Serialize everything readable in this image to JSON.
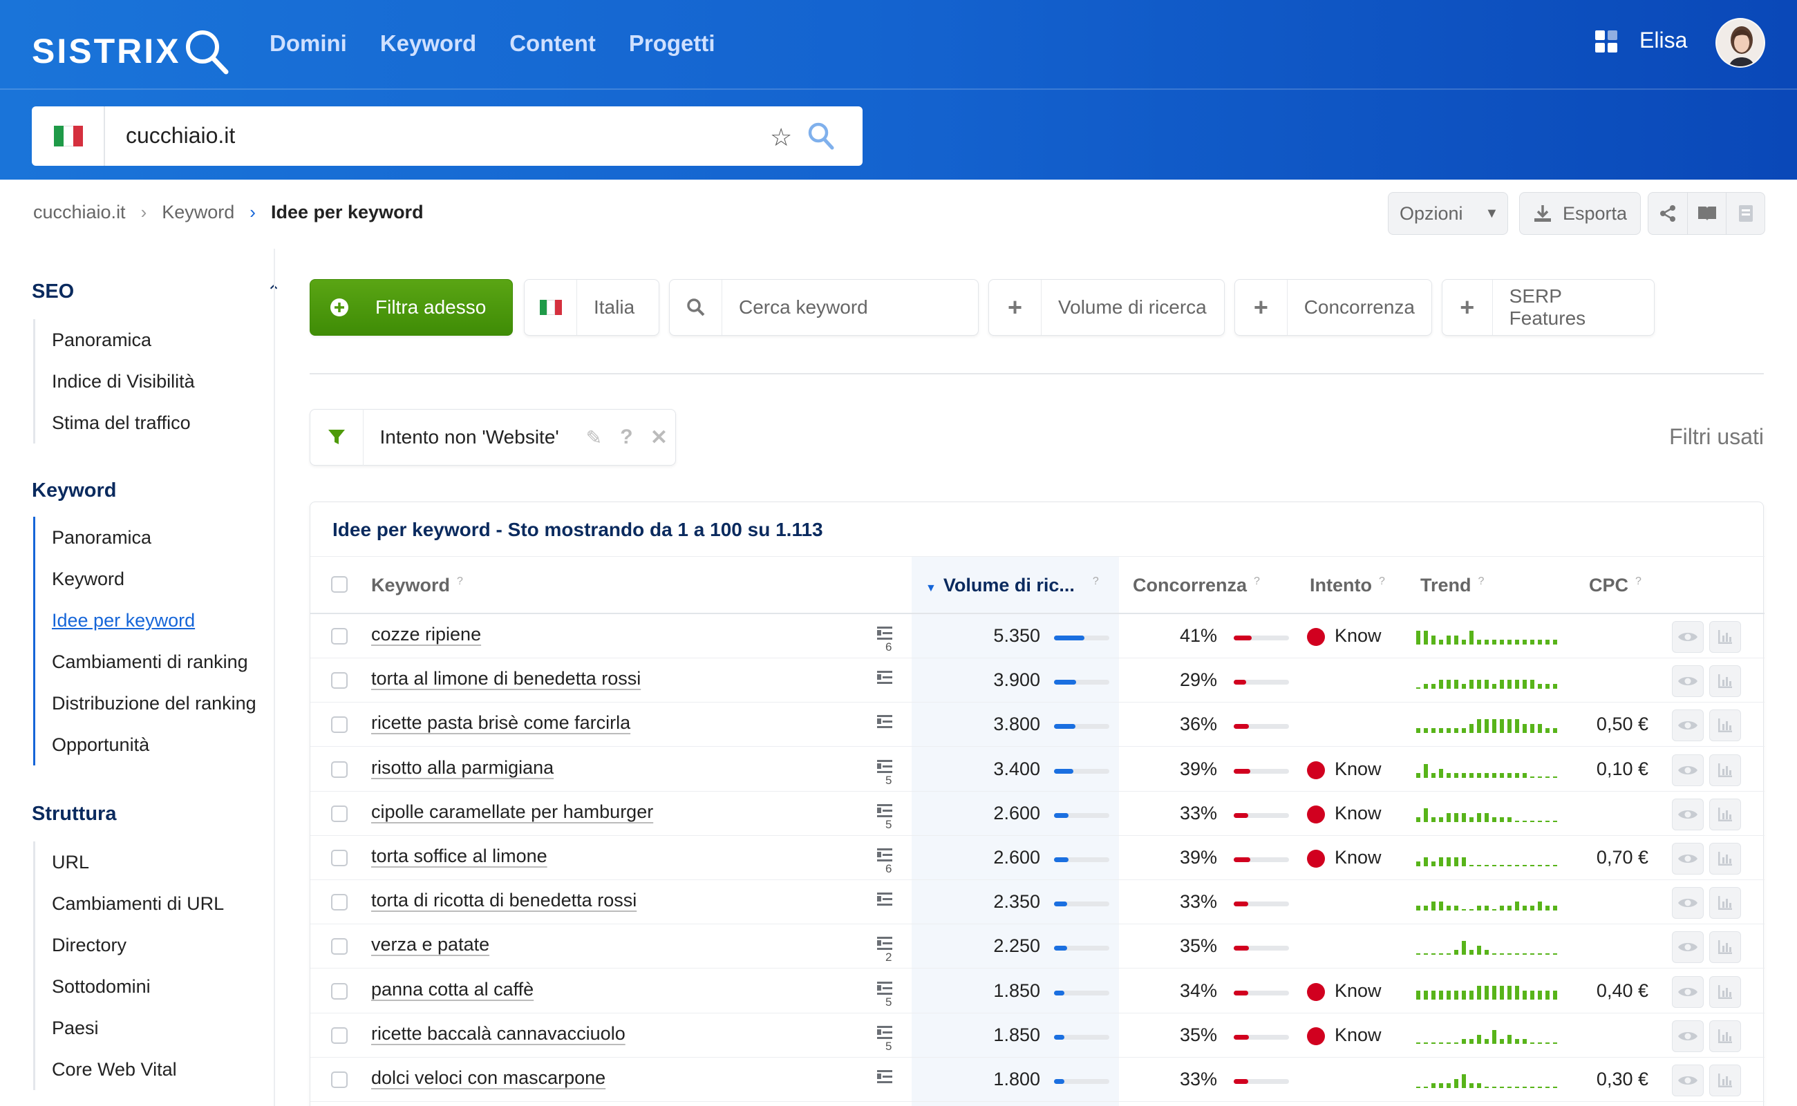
{
  "app": {
    "logo_text": "SISTRIX",
    "user_name": "Elisa"
  },
  "topnav": [
    "Domini",
    "Keyword",
    "Content",
    "Progetti"
  ],
  "search": {
    "value": "cucchiaio.it",
    "flag": "italy-flag"
  },
  "breadcrumb": [
    "cucchiaio.it",
    "Keyword",
    "Idee per keyword"
  ],
  "toolbar": {
    "options_label": "Opzioni",
    "export_label": "Esporta"
  },
  "sidebar": {
    "sections": [
      {
        "title": "SEO",
        "items": [
          "Panoramica",
          "Indice di Visibilità",
          "Stima del traffico"
        ]
      },
      {
        "title": "Keyword",
        "items": [
          "Panoramica",
          "Keyword",
          "Idee per keyword",
          "Cambiamenti di ranking",
          "Distribuzione del ranking",
          "Opportunità"
        ],
        "selected": 2
      },
      {
        "title": "Struttura",
        "items": [
          "URL",
          "Cambiamenti di URL",
          "Directory",
          "Sottodomini",
          "Paesi",
          "Core Web Vital"
        ]
      }
    ]
  },
  "filters": {
    "apply_label": "Filtra adesso",
    "country": "Italia",
    "search_placeholder": "Cerca keyword",
    "volume": "Volume di ricerca",
    "competition": "Concorrenza",
    "serp": "SERP Features",
    "active_filter": "Intento non 'Website'",
    "used_label": "Filtri usati"
  },
  "table": {
    "title": "Idee per keyword - Sto mostrando da 1 a 100 su 1.113",
    "columns": [
      "Keyword",
      "Volume di ric...",
      "Concorrenza",
      "Intento",
      "Trend",
      "CPC"
    ],
    "rows": [
      {
        "keyword": "cozze ripiene",
        "serp_count": "6",
        "volume": "5.350",
        "competition": "41%",
        "intent": "Know",
        "cpc": "",
        "trend": [
          3,
          3,
          2,
          1,
          2,
          2,
          1,
          3,
          1,
          1,
          1,
          1,
          1,
          1,
          1,
          1,
          1,
          1,
          1
        ]
      },
      {
        "keyword": "torta al limone di benedetta rossi",
        "serp_count": "",
        "volume": "3.900",
        "competition": "29%",
        "intent": "",
        "cpc": "",
        "trend": [
          0,
          1,
          1,
          2,
          2,
          2,
          1,
          2,
          2,
          2,
          1,
          2,
          2,
          2,
          2,
          2,
          1,
          1,
          1
        ]
      },
      {
        "keyword": "ricette pasta brisè come farcirla",
        "serp_count": "",
        "volume": "3.800",
        "competition": "36%",
        "intent": "",
        "cpc": "0,50 €",
        "trend": [
          1,
          1,
          1,
          1,
          1,
          1,
          1,
          2,
          3,
          3,
          3,
          3,
          3,
          3,
          2,
          2,
          2,
          1,
          1
        ]
      },
      {
        "keyword": "risotto alla parmigiana",
        "serp_count": "5",
        "volume": "3.400",
        "competition": "39%",
        "intent": "Know",
        "cpc": "0,10 €",
        "trend": [
          1,
          3,
          1,
          2,
          1,
          1,
          1,
          1,
          1,
          1,
          1,
          1,
          1,
          1,
          1,
          0,
          0,
          0,
          0
        ]
      },
      {
        "keyword": "cipolle caramellate per hamburger",
        "serp_count": "5",
        "volume": "2.600",
        "competition": "33%",
        "intent": "Know",
        "cpc": "",
        "trend": [
          1,
          3,
          1,
          1,
          2,
          2,
          2,
          1,
          2,
          2,
          1,
          1,
          1,
          0,
          0,
          0,
          0,
          0,
          0
        ]
      },
      {
        "keyword": "torta soffice al limone",
        "serp_count": "6",
        "volume": "2.600",
        "competition": "39%",
        "intent": "Know",
        "cpc": "0,70 €",
        "trend": [
          1,
          2,
          1,
          2,
          2,
          2,
          2,
          0,
          0,
          0,
          0,
          0,
          0,
          0,
          0,
          0,
          0,
          0,
          0
        ]
      },
      {
        "keyword": "torta di ricotta di benedetta rossi",
        "serp_count": "",
        "volume": "2.350",
        "competition": "33%",
        "intent": "",
        "cpc": "",
        "trend": [
          1,
          1,
          2,
          2,
          1,
          1,
          0,
          0,
          1,
          1,
          0,
          1,
          1,
          2,
          1,
          1,
          2,
          1,
          1
        ]
      },
      {
        "keyword": "verza e patate",
        "serp_count": "2",
        "volume": "2.250",
        "competition": "35%",
        "intent": "",
        "cpc": "",
        "trend": [
          0,
          0,
          0,
          0,
          0,
          1,
          3,
          1,
          2,
          1,
          0,
          0,
          0,
          0,
          0,
          0,
          0,
          0,
          0
        ]
      },
      {
        "keyword": "panna cotta al caffè",
        "serp_count": "5",
        "volume": "1.850",
        "competition": "34%",
        "intent": "Know",
        "cpc": "0,40 €",
        "trend": [
          2,
          2,
          2,
          2,
          2,
          2,
          2,
          2,
          3,
          3,
          3,
          3,
          3,
          3,
          2,
          2,
          2,
          2,
          2
        ]
      },
      {
        "keyword": "ricette baccalà cannavacciuolo",
        "serp_count": "5",
        "volume": "1.850",
        "competition": "35%",
        "intent": "Know",
        "cpc": "",
        "trend": [
          0,
          0,
          0,
          0,
          0,
          0,
          1,
          1,
          2,
          1,
          3,
          1,
          2,
          1,
          1,
          0,
          0,
          0,
          0
        ]
      },
      {
        "keyword": "dolci veloci con mascarpone",
        "serp_count": "",
        "volume": "1.800",
        "competition": "33%",
        "intent": "",
        "cpc": "0,30 €",
        "trend": [
          0,
          0,
          1,
          1,
          1,
          2,
          3,
          1,
          1,
          0,
          0,
          0,
          0,
          0,
          0,
          0,
          0,
          0,
          0
        ]
      }
    ]
  },
  "colors": {
    "header": "#1463cf",
    "accent": "#1565d8",
    "filter_green": "#4e9a0a",
    "trend_green": "#58b41a",
    "intent_red": "#d1001f",
    "competition_red": "#d1001f",
    "volume_blue": "#1a6fe0"
  }
}
